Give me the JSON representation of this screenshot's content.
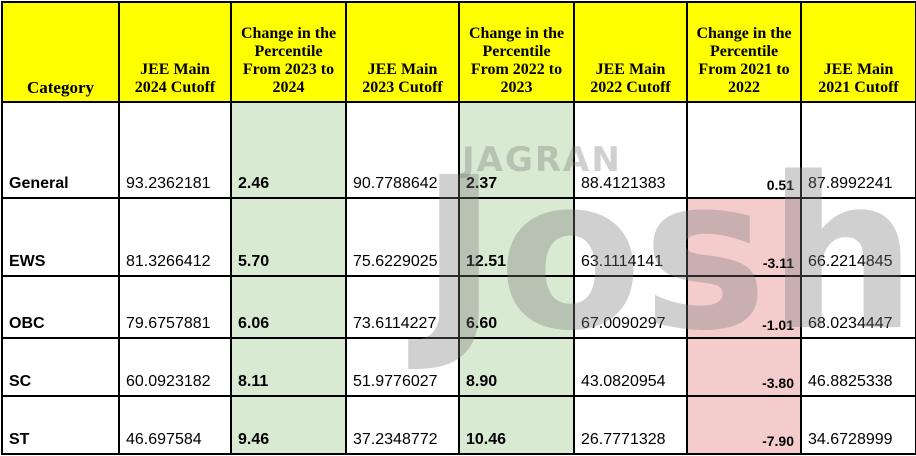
{
  "table": {
    "header": [
      "Category",
      "JEE Main 2024 Cutoff",
      "Change in the Percentile From 2023 to 2024",
      "JEE Main 2023 Cutoff",
      "Change in the Percentile From 2022 to 2023",
      "JEE Main 2022 Cutoff",
      "Change in the Percentile From 2021 to 2022",
      "JEE Main 2021 Cutoff"
    ],
    "rows": [
      [
        "General",
        "93.2362181",
        "2.46",
        "90.7788642",
        "2.37",
        "88.4121383",
        "0.51",
        "87.8992241"
      ],
      [
        "EWS",
        "81.3266412",
        "5.70",
        "75.6229025",
        "12.51",
        "63.1114141",
        "-3.11",
        "66.2214845"
      ],
      [
        "OBC",
        "79.6757881",
        "6.06",
        "73.6114227",
        "6.60",
        "67.0090297",
        "-1.01",
        "68.0234447"
      ],
      [
        "SC",
        "60.0923182",
        "8.11",
        "51.9776027",
        "8.90",
        "43.0820954",
        "-3.80",
        "46.8825338"
      ],
      [
        "ST",
        "46.697584",
        "9.46",
        "37.2348772",
        "10.46",
        "26.7771328",
        "-7.90",
        "34.6728999"
      ]
    ]
  },
  "watermark": [
    "JAGRAN",
    "Josh"
  ]
}
